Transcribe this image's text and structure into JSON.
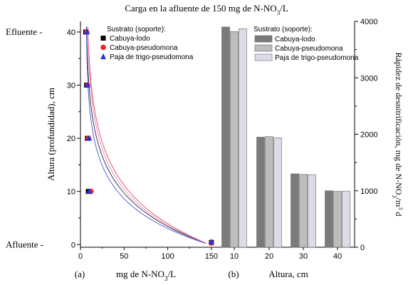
{
  "title": {
    "prefix": "Carga en la afluente de 150 mg de N-NO",
    "sub": "3",
    "suffix": "/L"
  },
  "colors": {
    "axis": "#000000",
    "cabuya_lodo": "#000000",
    "cabuya_pseudomona": "#ee2222",
    "paja_trigo": "#2233dd",
    "bar_cabuya_lodo": "#7a7a7a",
    "bar_cabuya_pseudomona": "#bdbdbd",
    "bar_paja_trigo": "#dcdce8",
    "curve_alt": "#d070c8"
  },
  "chart_data": [
    {
      "panel": "(a)",
      "type": "scatter",
      "xlabel": {
        "prefix": "mg de N-NO",
        "sub": "3",
        "suffix": "/L"
      },
      "ylabel": "Altura (profundidad), cm",
      "xlim": [
        0,
        155
      ],
      "ylim": [
        -0.5,
        42
      ],
      "xticks": [
        0,
        50,
        100,
        150
      ],
      "yticks": [
        0,
        10,
        20,
        30,
        40
      ],
      "ytick_marks": [
        0,
        5,
        10,
        15,
        20,
        25,
        30,
        35,
        40
      ],
      "ycat_labels": [
        {
          "y": 40,
          "text": "Efluente -"
        },
        {
          "y": 0,
          "text": "Afluente -"
        }
      ],
      "legend_title": "Sustrato (soporte):",
      "series": [
        {
          "name": "Cabuya-lodo",
          "marker": "square",
          "x": [
            150,
            9,
            8,
            7,
            6
          ],
          "y": [
            0.4,
            10,
            20,
            30,
            40
          ]
        },
        {
          "name": "Cabuya-pseudomona",
          "marker": "circle",
          "x": [
            150,
            12,
            9,
            8,
            7
          ],
          "y": [
            0.3,
            10,
            20,
            30,
            40
          ]
        },
        {
          "name": "Paja de trigo-pseudomona",
          "marker": "triangle",
          "x": [
            150,
            10,
            10,
            8,
            7.5
          ],
          "y": [
            0.5,
            10,
            20,
            30,
            40
          ]
        }
      ]
    },
    {
      "panel": "(b)",
      "type": "bar",
      "xlabel": "Altura, cm",
      "ylabel": {
        "prefix": "Rápidez de desnitrificación, mg de N-NO",
        "sub": "3",
        "mid": "/m",
        "sup": "3",
        "suffix": " d"
      },
      "categories": [
        "10",
        "20",
        "30",
        "40"
      ],
      "ylim": [
        0,
        4000
      ],
      "yticks": [
        0,
        1000,
        2000,
        3000,
        4000
      ],
      "legend_title": "Sustrato (soporte):",
      "series": [
        {
          "name": "Cabuya-lodo",
          "values": [
            3900,
            1950,
            1300,
            1000
          ]
        },
        {
          "name": "Cabuya-pseudomona",
          "values": [
            3820,
            1960,
            1290,
            990
          ]
        },
        {
          "name": "Paja de trigo-pseudomona",
          "values": [
            3870,
            1940,
            1285,
            995
          ]
        }
      ]
    }
  ]
}
